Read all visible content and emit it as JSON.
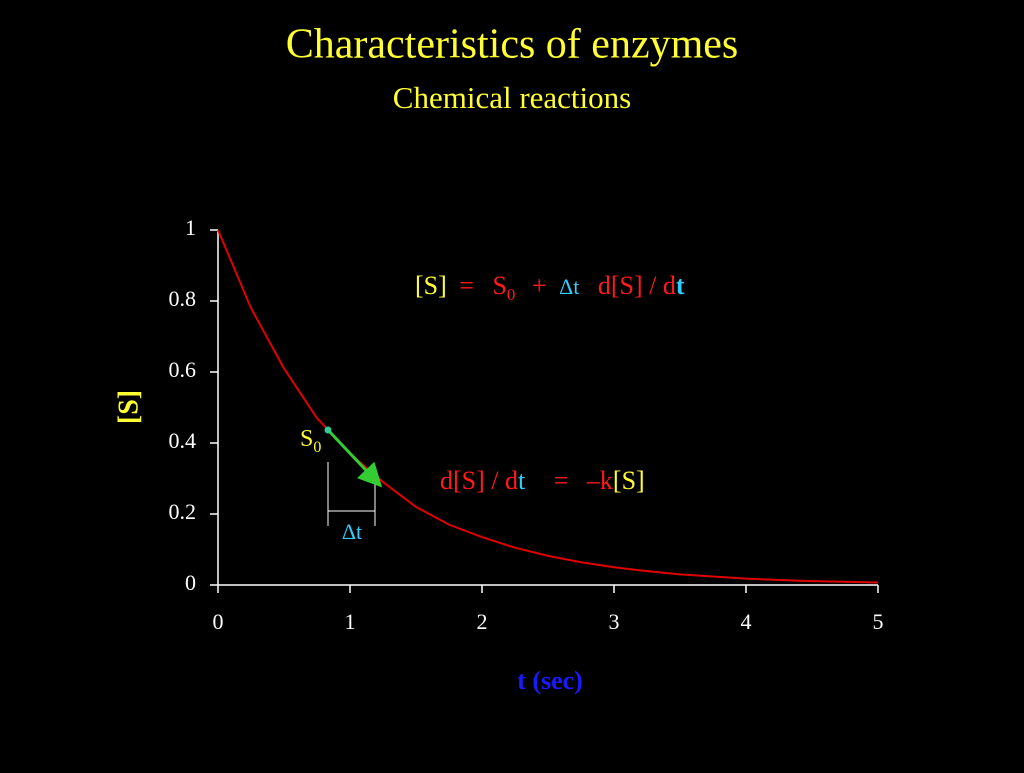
{
  "chart_data": {
    "type": "line",
    "title": "Characteristics of enzymes",
    "subtitle": "Chemical reactions",
    "x_label": "t (sec)",
    "y_label": "[S]",
    "x": [
      0,
      0.25,
      0.5,
      0.75,
      1,
      1.25,
      1.5,
      1.75,
      2,
      2.25,
      2.5,
      2.75,
      3,
      3.25,
      3.5,
      3.75,
      4,
      4.25,
      4.5,
      4.75,
      5
    ],
    "series": [
      {
        "name": "[S]",
        "color": "#e00000",
        "values": [
          1,
          0.78,
          0.61,
          0.47,
          0.37,
          0.29,
          0.22,
          0.17,
          0.135,
          0.105,
          0.082,
          0.064,
          0.05,
          0.039,
          0.03,
          0.024,
          0.018,
          0.014,
          0.011,
          0.009,
          0.007
        ]
      }
    ],
    "xlim": [
      0,
      5
    ],
    "ylim": [
      0,
      1
    ],
    "xticks": [
      0,
      1,
      2,
      3,
      4,
      5
    ],
    "yticks": [
      0,
      0.2,
      0.4,
      0.6,
      0.8,
      1
    ],
    "annotations": {
      "equation_1": [
        "[S]",
        "=",
        "S",
        "0",
        "+",
        "Δt",
        "d[S] / d",
        "t"
      ],
      "equation_2": [
        "d",
        "[S] / d",
        "t",
        "=",
        "–k",
        "[S]"
      ],
      "point_label": [
        "S",
        "0"
      ],
      "interval_label": "Δt"
    }
  }
}
